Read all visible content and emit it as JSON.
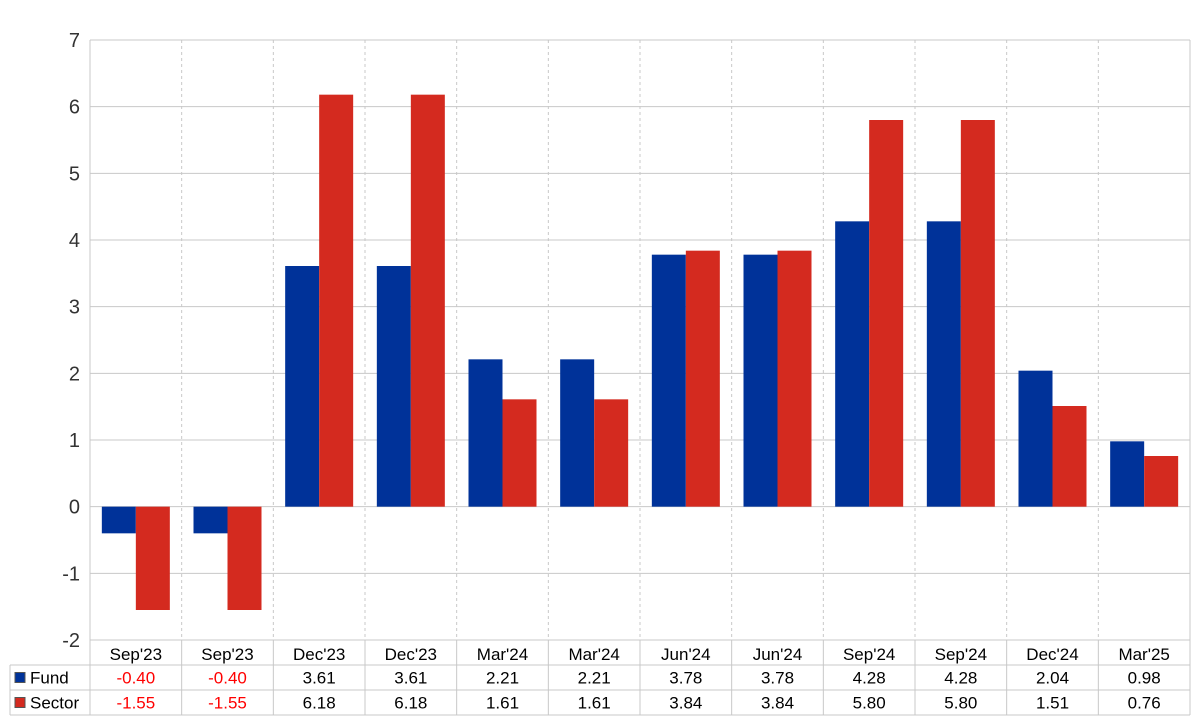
{
  "chart_data": {
    "type": "bar",
    "categories": [
      "Sep'23",
      "Sep'23",
      "Dec'23",
      "Dec'23",
      "Mar'24",
      "Mar'24",
      "Jun'24",
      "Jun'24",
      "Sep'24",
      "Sep'24",
      "Dec'24",
      "Mar'25"
    ],
    "series": [
      {
        "name": "Fund",
        "color": "#003299",
        "values": [
          -0.4,
          -0.4,
          3.61,
          3.61,
          2.21,
          2.21,
          3.78,
          3.78,
          4.28,
          4.28,
          2.04,
          0.98
        ],
        "labels": [
          "-0.40",
          "-0.40",
          "3.61",
          "3.61",
          "2.21",
          "2.21",
          "3.78",
          "3.78",
          "4.28",
          "4.28",
          "2.04",
          "0.98"
        ]
      },
      {
        "name": "Sector",
        "color": "#d42a1f",
        "values": [
          -1.55,
          -1.55,
          6.18,
          6.18,
          1.61,
          1.61,
          3.84,
          3.84,
          5.8,
          5.8,
          1.51,
          0.76
        ],
        "labels": [
          "-1.55",
          "-1.55",
          "6.18",
          "6.18",
          "1.61",
          "1.61",
          "3.84",
          "3.84",
          "5.80",
          "5.80",
          "1.51",
          "0.76"
        ]
      }
    ],
    "ylim": [
      -2,
      7
    ],
    "yticks": [
      "-2",
      "-1",
      "0",
      "1",
      "2",
      "3",
      "4",
      "5",
      "6",
      "7"
    ],
    "title": "",
    "xlabel": "",
    "ylabel": "",
    "grid": true,
    "legend": "data-table-left",
    "negative_label_color": "#ff0000",
    "positive_label_color": "#000000"
  }
}
